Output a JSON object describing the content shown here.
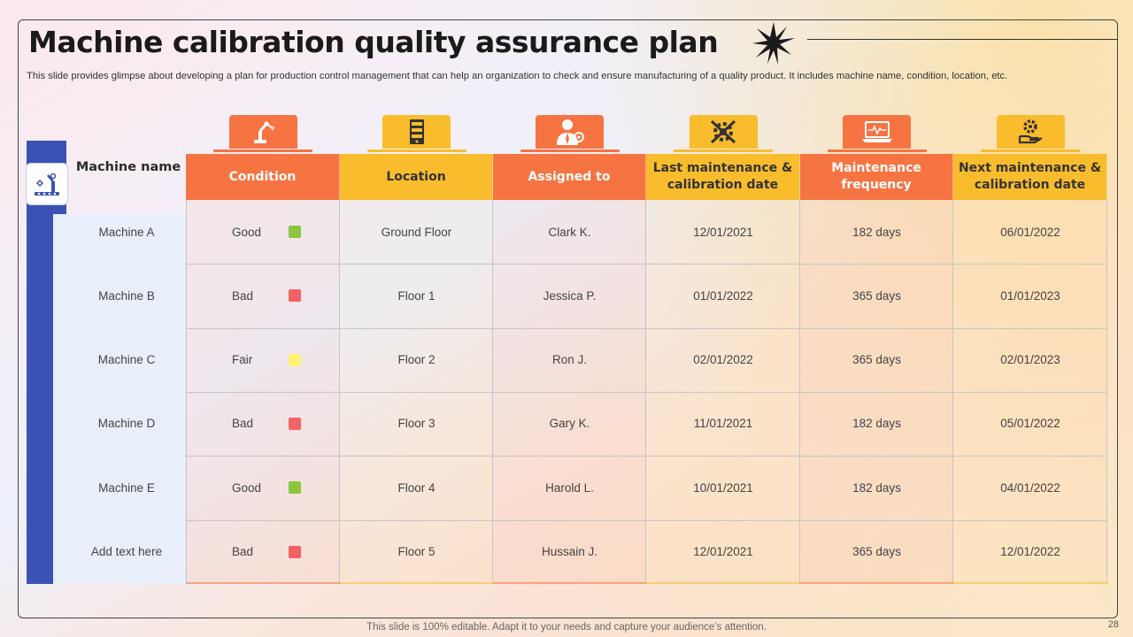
{
  "slide": {
    "title": "Machine calibration quality assurance plan",
    "subtitle": "This slide provides glimpse about developing a plan for production control management that can help an organization to check and ensure manufacturing of a quality product. It includes machine name, condition, location, etc.",
    "footer": "This slide is 100% editable. Adapt it to your needs and capture your audience’s attention.",
    "page_number": "28"
  },
  "table": {
    "name_header": "Machine name",
    "headers": [
      {
        "label": "Condition",
        "icon": "robot-arm-icon",
        "color": "#f57442"
      },
      {
        "label": "Location",
        "icon": "server-rack-icon",
        "color": "#f8bc2c"
      },
      {
        "label": "Assigned to",
        "icon": "engineer-icon",
        "color": "#f57442"
      },
      {
        "label": "Last maintenance & calibration date",
        "icon": "tools-gear-icon",
        "color": "#f8bc2c"
      },
      {
        "label": "Maintenance frequency",
        "icon": "laptop-monitor-icon",
        "color": "#f57442"
      },
      {
        "label": "Next maintenance & calibration date",
        "icon": "hand-gear-icon",
        "color": "#f8bc2c"
      }
    ],
    "rows": [
      {
        "name": "Machine A",
        "condition": "Good",
        "condition_color": "#8dc63f",
        "location": "Ground Floor",
        "assigned": "Clark K.",
        "last": "12/01/2021",
        "frequency": "182 days",
        "next": "06/01/2022"
      },
      {
        "name": "Machine B",
        "condition": "Bad",
        "condition_color": "#f26464",
        "location": "Floor 1",
        "assigned": "Jessica P.",
        "last": "01/01/2022",
        "frequency": "365 days",
        "next": "01/01/2023"
      },
      {
        "name": "Machine C",
        "condition": "Fair",
        "condition_color": "#fff176",
        "location": "Floor 2",
        "assigned": "Ron J.",
        "last": "02/01/2022",
        "frequency": "365 days",
        "next": "02/01/2023"
      },
      {
        "name": "Machine D",
        "condition": "Bad",
        "condition_color": "#f26464",
        "location": "Floor 3",
        "assigned": "Gary K.",
        "last": "11/01/2021",
        "frequency": "182 days",
        "next": "05/01/2022"
      },
      {
        "name": "Machine E",
        "condition": "Good",
        "condition_color": "#8dc63f",
        "location": "Floor 4",
        "assigned": "Harold L.",
        "last": "10/01/2021",
        "frequency": "182 days",
        "next": "04/01/2022"
      },
      {
        "name": "Add text here",
        "condition": "Bad",
        "condition_color": "#f26464",
        "location": "Floor 5",
        "assigned": "Hussain J.",
        "last": "12/01/2021",
        "frequency": "365 days",
        "next": "12/01/2022"
      }
    ]
  }
}
